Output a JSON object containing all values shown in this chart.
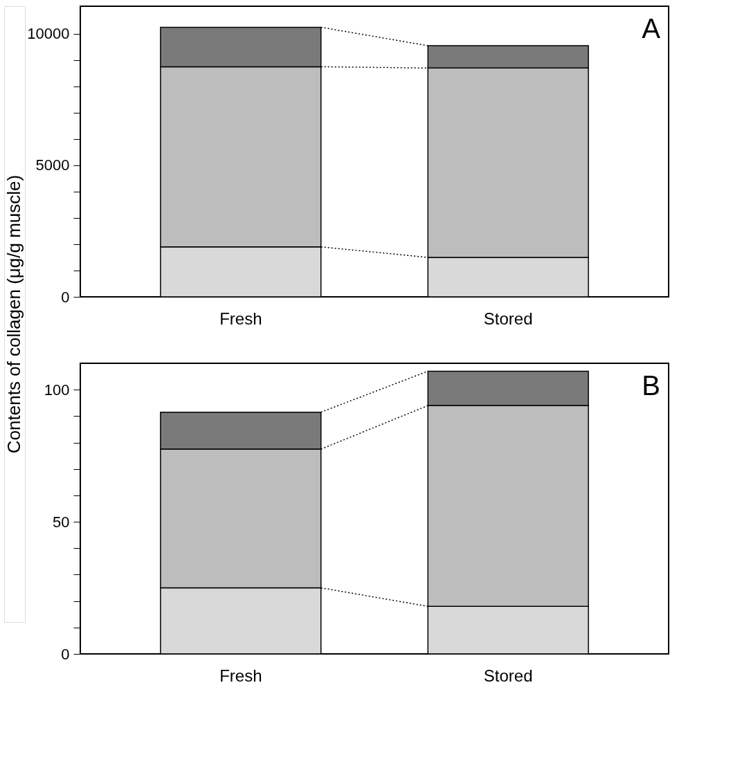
{
  "chart_data": [
    {
      "type": "bar",
      "stacked": true,
      "ylabel": "Contents of collagen (μg/g muscle)",
      "categories": [
        "Fresh",
        "Stored"
      ],
      "series": [
        {
          "color": "#d9d9d9",
          "values": [
            1900,
            1500
          ]
        },
        {
          "color": "#bdbdbd",
          "values": [
            6850,
            7200
          ]
        },
        {
          "color": "#7a7a7a",
          "values": [
            1500,
            850
          ]
        }
      ],
      "ylim": [
        0,
        11050
      ],
      "yticks": [
        0,
        {
          "value": 1000,
          "label": null
        },
        {
          "value": 2000,
          "label": null
        },
        {
          "value": 3000,
          "label": null
        },
        {
          "value": 4000,
          "label": null
        },
        5000,
        {
          "value": 6000,
          "label": null
        },
        {
          "value": 7000,
          "label": null
        },
        {
          "value": 8000,
          "label": null
        },
        {
          "value": 9000,
          "label": null
        },
        10000
      ],
      "annotations": [
        "A"
      ],
      "grid": false,
      "legend": false
    },
    {
      "type": "bar",
      "stacked": true,
      "categories": [
        "Fresh",
        "Stored"
      ],
      "series": [
        {
          "color": "#d9d9d9",
          "values": [
            25,
            18
          ]
        },
        {
          "color": "#bdbdbd",
          "values": [
            52.5,
            76
          ]
        },
        {
          "color": "#7a7a7a",
          "values": [
            14,
            13
          ]
        }
      ],
      "ylim": [
        0,
        110
      ],
      "yticks": [
        0,
        {
          "value": 10,
          "label": null
        },
        {
          "value": 20,
          "label": null
        },
        {
          "value": 30,
          "label": null
        },
        {
          "value": 40,
          "label": null
        },
        50,
        {
          "value": 60,
          "label": null
        },
        {
          "value": 70,
          "label": null
        },
        {
          "value": 80,
          "label": null
        },
        {
          "value": 90,
          "label": null
        },
        100
      ],
      "annotations": [
        "B"
      ],
      "grid": false,
      "legend": false
    }
  ]
}
